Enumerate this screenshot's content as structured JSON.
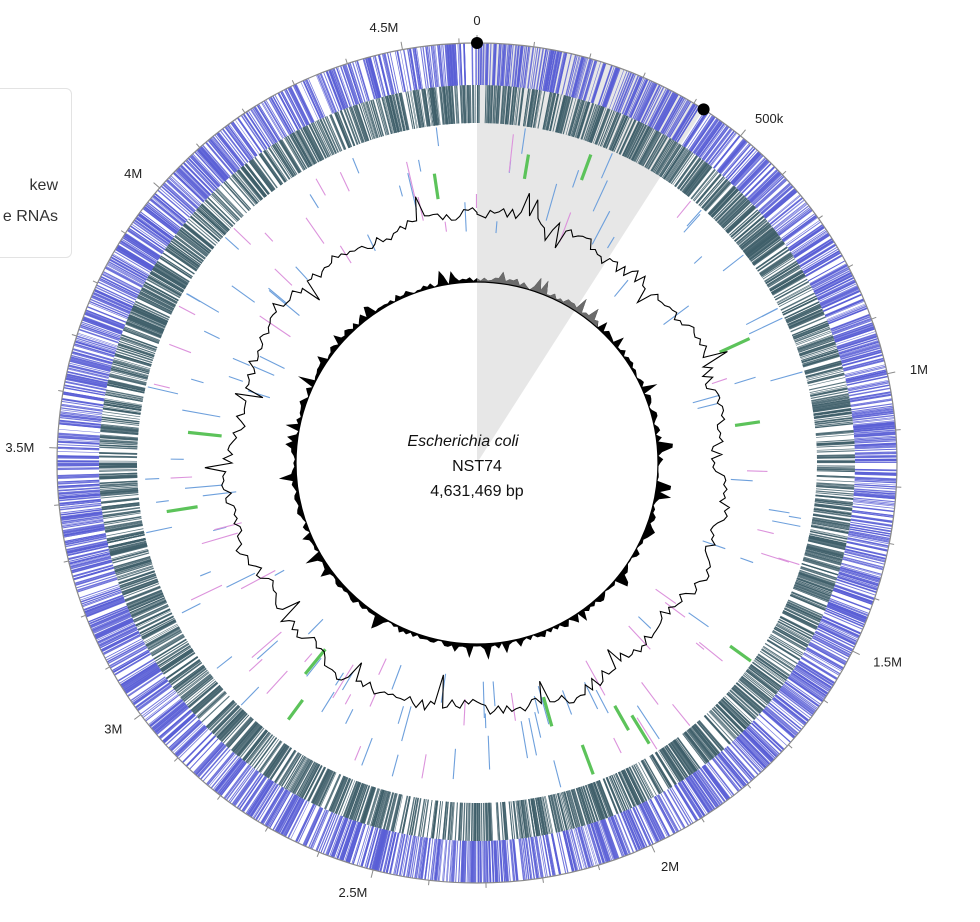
{
  "organism": "Escherichia coli",
  "strain": "NST74",
  "genome_length_label": "4,631,469 bp",
  "genome_length": 4631469,
  "legend": {
    "items": [
      {
        "label": "kew"
      },
      {
        "label": "e RNAs"
      }
    ]
  },
  "tick_labels": [
    {
      "label": "0",
      "value": 0
    },
    {
      "label": "500k",
      "value": 500000
    },
    {
      "label": "1M",
      "value": 1000000
    },
    {
      "label": "1.5M",
      "value": 1500000
    },
    {
      "label": "2M",
      "value": 2000000
    },
    {
      "label": "2.5M",
      "value": 2500000
    },
    {
      "label": "3M",
      "value": 3000000
    },
    {
      "label": "3.5M",
      "value": 3500000
    },
    {
      "label": "4M",
      "value": 4000000
    },
    {
      "label": "4.5M",
      "value": 4500000
    }
  ],
  "selection": {
    "start": 0,
    "end": 420000
  },
  "colors": {
    "forward_cds": "#5a5fd6",
    "reverse_cds": "#3f5f6a",
    "trna": "#6ea0dc",
    "rrna": "#dc93dc",
    "ncrna": "#5cc35a",
    "gc_content": "#000000",
    "gc_skew_positive": "#6b6b6b",
    "gc_skew_negative": "#000000",
    "backbone": "#8a8a8a",
    "selection": "#d8d8d8",
    "marker": "#000000"
  }
}
